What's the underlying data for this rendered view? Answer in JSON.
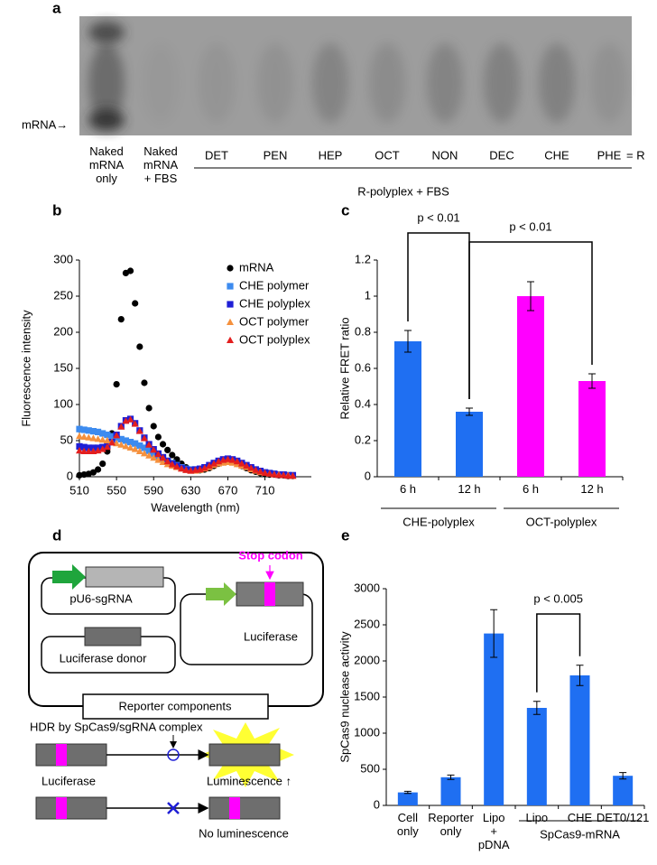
{
  "panel_labels": [
    "a",
    "b",
    "c",
    "d",
    "e"
  ],
  "gel": {
    "marker": "mRNA→",
    "lanes": [
      "Naked mRNA only",
      "Naked mRNA + FBS",
      "DET",
      "PEN",
      "HEP",
      "OCT",
      "NON",
      "DEC",
      "CHE",
      "PHE"
    ],
    "legend_note": "= R",
    "group_label": "R-polyplex + FBS"
  },
  "chart_data": [
    {
      "type": "scatter",
      "y_label": "Fluorescence intensity",
      "x_label": "Wavelength (nm)",
      "x": [
        510,
        515,
        520,
        525,
        530,
        535,
        540,
        545,
        550,
        555,
        560,
        565,
        570,
        575,
        580,
        585,
        590,
        595,
        600,
        605,
        610,
        615,
        620,
        625,
        630,
        635,
        640,
        645,
        650,
        655,
        660,
        665,
        670,
        675,
        680,
        685,
        690,
        695,
        700,
        705,
        710,
        715,
        720,
        725,
        730,
        735,
        740
      ],
      "series": [
        {
          "name": "mRNA",
          "color": "#000000",
          "marker": "circle",
          "values": [
            2,
            3,
            4,
            6,
            10,
            18,
            35,
            60,
            128,
            218,
            282,
            285,
            240,
            180,
            130,
            95,
            70,
            55,
            45,
            37,
            30,
            24,
            18,
            13,
            10,
            9,
            9,
            10,
            12,
            15,
            18,
            20,
            21,
            20,
            18,
            15,
            12,
            9,
            7,
            5,
            4,
            3,
            3,
            2,
            2,
            1,
            1
          ]
        },
        {
          "name": "CHE polymer",
          "color": "#3d8bef",
          "marker": "square",
          "values": [
            66,
            65,
            64,
            63,
            62,
            60,
            58,
            56,
            54,
            52,
            50,
            48,
            46,
            43,
            40,
            36,
            32,
            28,
            25,
            22,
            19,
            16,
            13,
            11,
            10,
            10,
            11,
            13,
            15,
            18,
            20,
            22,
            23,
            22,
            20,
            18,
            15,
            12,
            10,
            8,
            6,
            5,
            4,
            3,
            3,
            2,
            2
          ]
        },
        {
          "name": "CHE polyplex",
          "color": "#1f1fd6",
          "marker": "square",
          "values": [
            42,
            41,
            40,
            40,
            40,
            41,
            43,
            48,
            58,
            70,
            78,
            80,
            74,
            64,
            54,
            45,
            38,
            32,
            27,
            22,
            18,
            15,
            12,
            10,
            9,
            10,
            11,
            13,
            16,
            19,
            22,
            24,
            25,
            24,
            22,
            19,
            16,
            13,
            10,
            8,
            6,
            5,
            4,
            3,
            3,
            2,
            2
          ]
        },
        {
          "name": "OCT polymer",
          "color": "#f5913d",
          "marker": "triangle",
          "values": [
            56,
            55,
            54,
            53,
            52,
            51,
            50,
            48,
            46,
            44,
            42,
            40,
            38,
            35,
            32,
            29,
            26,
            23,
            20,
            17,
            15,
            13,
            11,
            9,
            8,
            8,
            9,
            11,
            13,
            16,
            18,
            19,
            20,
            19,
            17,
            15,
            13,
            10,
            8,
            6,
            5,
            4,
            3,
            3,
            2,
            2,
            1
          ]
        },
        {
          "name": "OCT polyplex",
          "color": "#e31e1e",
          "marker": "triangle",
          "values": [
            36,
            35,
            35,
            35,
            36,
            38,
            41,
            47,
            57,
            69,
            77,
            79,
            73,
            63,
            53,
            44,
            37,
            31,
            26,
            21,
            17,
            14,
            11,
            9,
            8,
            9,
            10,
            12,
            15,
            18,
            21,
            23,
            24,
            23,
            21,
            18,
            15,
            12,
            9,
            7,
            5,
            4,
            3,
            2,
            2,
            1,
            1
          ]
        }
      ],
      "xlim": [
        510,
        760
      ],
      "xticks": [
        510,
        550,
        590,
        630,
        670,
        710
      ],
      "ylim": [
        0,
        300
      ],
      "yticks": [
        0,
        50,
        100,
        150,
        200,
        250,
        300
      ],
      "legend": "top-right"
    },
    {
      "type": "bar",
      "y_label": "Relative FRET ratio",
      "categories": [
        "6 h",
        "12 h",
        "6 h",
        "12 h"
      ],
      "values": [
        0.75,
        0.36,
        1,
        0.53
      ],
      "errors": [
        0.06,
        0.02,
        0.08,
        0.04
      ],
      "colors": [
        "#1f6ff2",
        "#1f6ff2",
        "#ff00ff",
        "#ff00ff"
      ],
      "group_labels": [
        "CHE-polyplex",
        "OCT-polyplex"
      ],
      "annotations": [
        "p < 0.01",
        "p < 0.01"
      ],
      "ylim": [
        0,
        1.2
      ],
      "yticks": [
        0,
        0.2,
        0.4,
        0.6,
        0.8,
        1,
        1.2
      ]
    },
    {
      "type": "bar",
      "y_label": "SpCas9 nuclease activity",
      "categories": [
        "Cell only",
        "Reporter only",
        "Lipo + pDNA",
        "Lipo",
        "CHE",
        "DET0/121"
      ],
      "values": [
        180,
        390,
        2380,
        1350,
        1800,
        410
      ],
      "errors": [
        15,
        30,
        330,
        90,
        140,
        45
      ],
      "colors": [
        "#1f6ff2",
        "#1f6ff2",
        "#1f6ff2",
        "#1f6ff2",
        "#1f6ff2",
        "#1f6ff2"
      ],
      "group_labels": [
        "SpCas9-mRNA"
      ],
      "annotations": [
        "p < 0.005"
      ],
      "ylim": [
        0,
        3000
      ],
      "yticks": [
        0,
        500,
        1000,
        1500,
        2000,
        2500,
        3000
      ]
    }
  ],
  "diagram": {
    "plasmids": [
      "pU6-sgRNA",
      "Luciferase donor",
      "Luciferase"
    ],
    "stop_codon": "Stop codon",
    "box_label": "Reporter components",
    "hdr_label": "HDR by SpCas9/sgRNA complex",
    "outcomes": [
      "Luciferase",
      "Luminescence ↑",
      "No luminescence"
    ]
  }
}
